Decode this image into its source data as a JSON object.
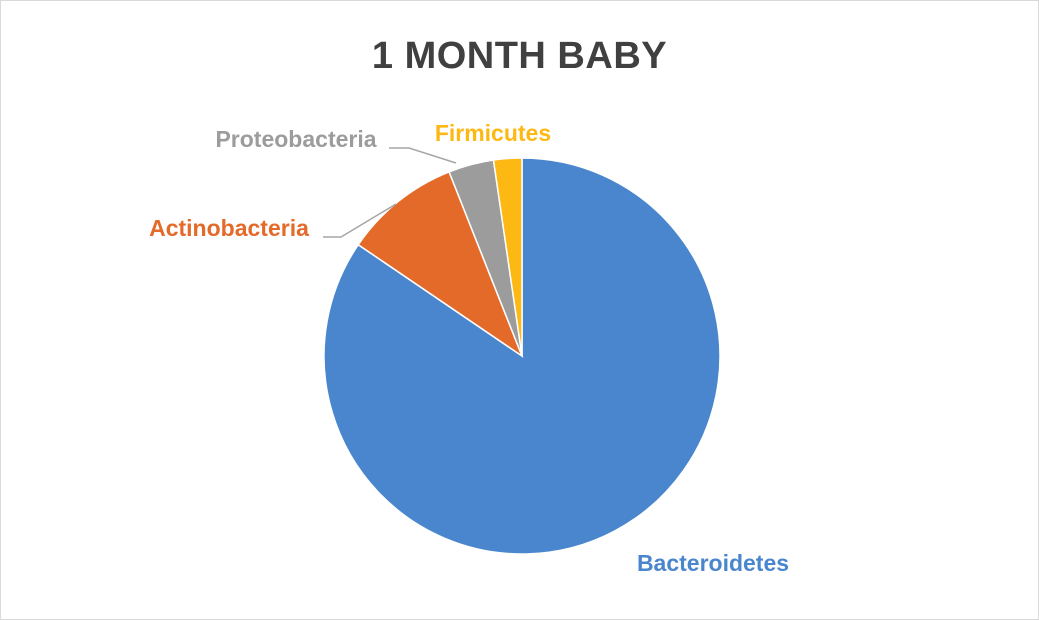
{
  "chart_data": {
    "type": "pie",
    "title": "1 MONTH BABY",
    "categories": [
      "Bacteroidetes",
      "Actinobacteria",
      "Proteobacteria",
      "Firmicutes"
    ],
    "values": [
      84.5,
      9.5,
      3.7,
      2.3
    ],
    "colors": [
      "#4a86cd",
      "#e46a2a",
      "#9c9c9c",
      "#fdb813"
    ],
    "label_colors": [
      "#4a86cd",
      "#e46a2a",
      "#9c9c9c",
      "#fdb813"
    ],
    "legend": "none",
    "data_labels": "category names outside slices"
  }
}
